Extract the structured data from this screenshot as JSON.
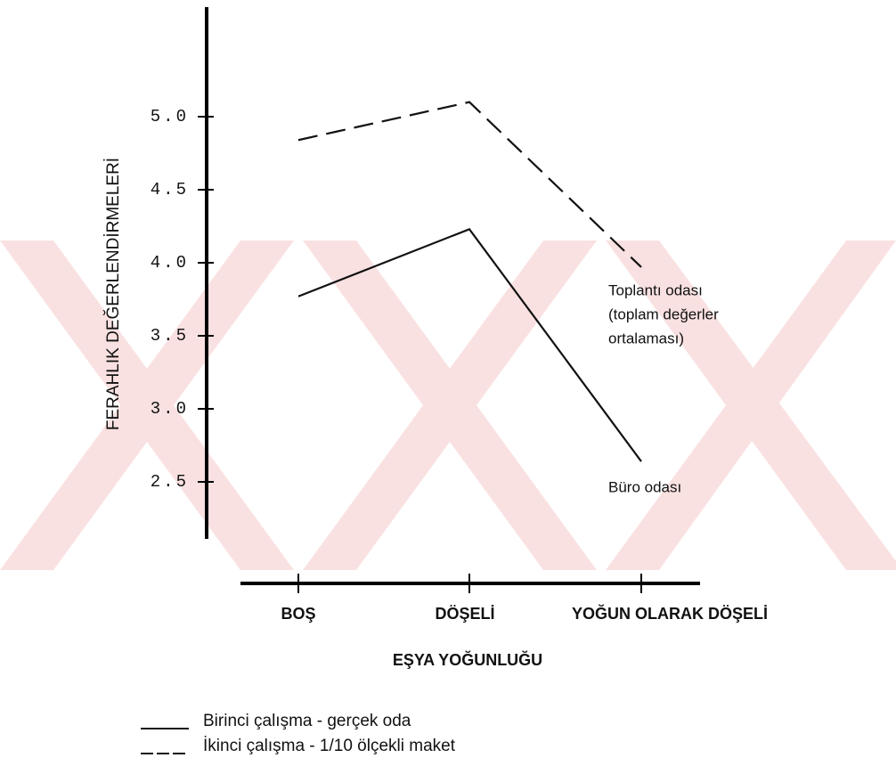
{
  "chart_data": {
    "type": "line",
    "y_label": "FERAHLIK DEĞERLENDİRMELERİ",
    "x_label": "EŞYA YOĞUNLUĞU",
    "categories": [
      "BOŞ",
      "DÖŞELİ",
      "YOĞUN OLARAK DÖŞELİ"
    ],
    "series": [
      {
        "name": "Birinci çalışma - gerçek oda",
        "color": "#111111",
        "dash": "solid",
        "values": [
          3.77,
          4.23,
          2.64
        ]
      },
      {
        "name": "İkinci çalışma - 1/10 ölçekli maket",
        "color": "#111111",
        "dash": "dashed",
        "values": [
          4.84,
          5.1,
          3.97
        ]
      }
    ],
    "annotations": [
      {
        "lines": [
          "Toplantı odası",
          "(toplam değerler",
          "ortalaması)"
        ]
      },
      {
        "lines": [
          "Büro odası"
        ]
      }
    ],
    "ylim": [
      2.11,
      5.75
    ],
    "yticks": [
      2.5,
      {
        "value": 3,
        "label": "3.0"
      },
      3.5,
      {
        "value": 4,
        "label": "4.0"
      },
      4.5,
      {
        "value": 5,
        "label": "5.0"
      }
    ],
    "grid": false
  }
}
